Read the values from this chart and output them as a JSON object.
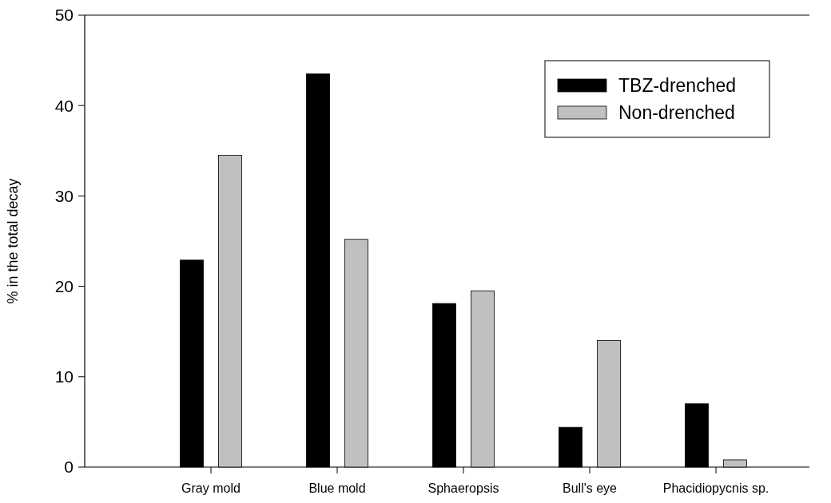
{
  "chart_data": {
    "type": "bar",
    "ylabel": "% in the total decay",
    "categories": [
      "Gray mold",
      "Blue mold",
      "Sphaeropsis",
      "Bull's eye",
      "Phacidiopycnis sp."
    ],
    "series": [
      {
        "name": "TBZ-drenched",
        "color": "#000000",
        "values": [
          22.9,
          43.5,
          18.1,
          4.4,
          7.0
        ]
      },
      {
        "name": "Non-drenched",
        "color": "#c0c0c0",
        "values": [
          34.5,
          25.2,
          19.5,
          14.0,
          0.8
        ]
      }
    ],
    "ylim": [
      0,
      50
    ],
    "yticks": [
      0,
      10,
      20,
      30,
      40,
      50
    ],
    "legend": "top right"
  }
}
